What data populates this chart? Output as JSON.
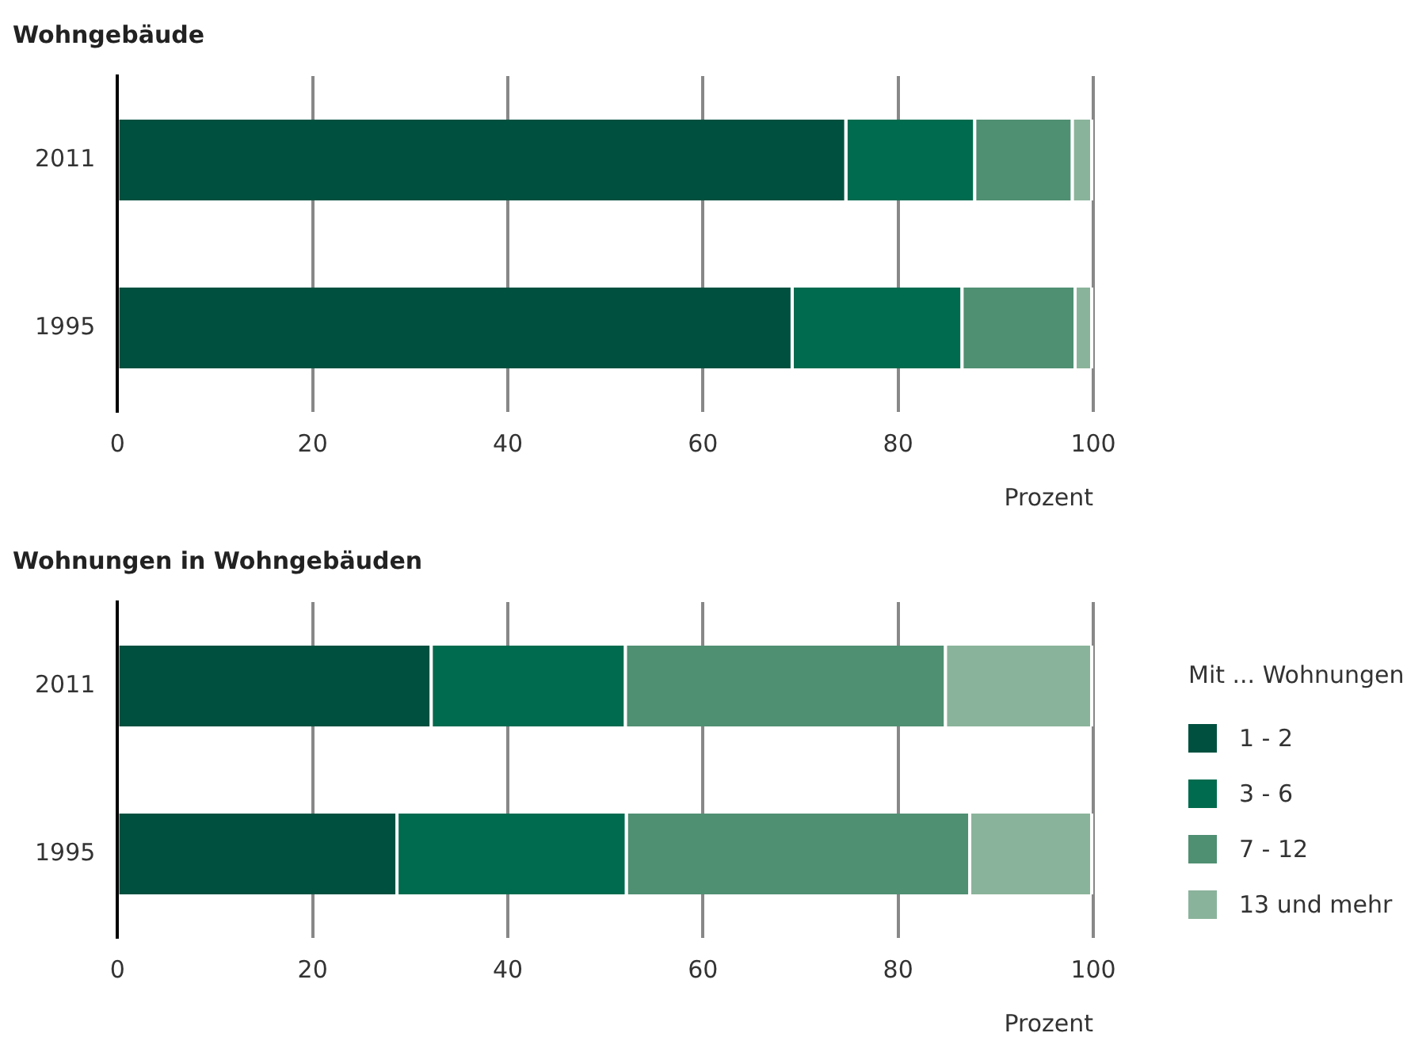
{
  "chart_data": [
    {
      "type": "bar",
      "title": "Wohngebäude",
      "orientation": "horizontal",
      "stacked": true,
      "categories": [
        "2011",
        "1995"
      ],
      "xlabel": "Prozent",
      "xlim": [
        0,
        100
      ],
      "xticks": [
        0,
        20,
        40,
        60,
        80,
        100
      ],
      "grid": "x",
      "legend": false,
      "series": [
        {
          "color": "#00503f",
          "values": [
            74.8,
            69.3
          ]
        },
        {
          "color": "#006b4e",
          "values": [
            13.2,
            17.4
          ]
        },
        {
          "color": "#4f8f72",
          "values": [
            10.0,
            11.6
          ]
        },
        {
          "color": "#8ab39b",
          "values": [
            2.0,
            1.7
          ]
        }
      ]
    },
    {
      "type": "bar",
      "title": "Wohnungen in Wohngebäuden",
      "orientation": "horizontal",
      "stacked": true,
      "categories": [
        "2011",
        "1995"
      ],
      "xlabel": "Prozent",
      "xlim": [
        0,
        100
      ],
      "xticks": [
        0,
        20,
        40,
        60,
        80,
        100
      ],
      "grid": "x",
      "legend": "right",
      "legend_title": "Mit  ... Wohnungen",
      "series": [
        {
          "name": "1 - 2",
          "color": "#00503f",
          "values": [
            32.3,
            28.8
          ]
        },
        {
          "name": "3 - 6",
          "color": "#006b4e",
          "values": [
            19.9,
            23.5
          ]
        },
        {
          "name": "7 - 12",
          "color": "#4f8f72",
          "values": [
            32.8,
            35.2
          ]
        },
        {
          "name": "13 und mehr",
          "color": "#8ab39b",
          "values": [
            15.0,
            12.5
          ]
        }
      ]
    }
  ]
}
